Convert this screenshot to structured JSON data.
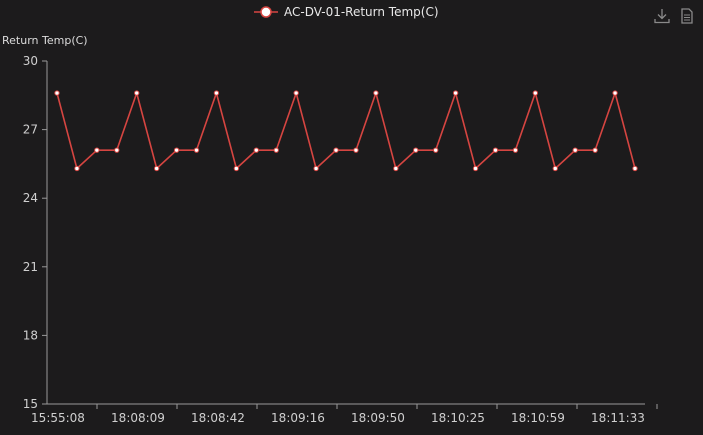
{
  "toolbox": {
    "download_icon": "download-icon",
    "data_view_icon": "data-view-icon"
  },
  "colors": {
    "background": "#1c1b1c",
    "series": "#d64541",
    "axis": "#9a9a9a",
    "text": "#dcdcdc"
  },
  "chart_data": {
    "type": "line",
    "legend_position": "top-center",
    "ylabel": "Return Temp(C)",
    "xlabel": "",
    "ylim": [
      15,
      30
    ],
    "yticks": [
      15,
      18,
      21,
      24,
      27,
      30
    ],
    "grid": false,
    "x_tick_labels": [
      "15:55:08",
      "18:08:09",
      "18:08:42",
      "18:09:16",
      "18:09:50",
      "18:10:25",
      "18:10:59",
      "18:11:33"
    ],
    "series": [
      {
        "name": "AC-DV-01-Return Temp(C)",
        "color": "#d64541",
        "values": [
          28.6,
          25.3,
          26.1,
          26.1,
          28.6,
          25.3,
          26.1,
          26.1,
          28.6,
          25.3,
          26.1,
          26.1,
          28.6,
          25.3,
          26.1,
          26.1,
          28.6,
          25.3,
          26.1,
          26.1,
          28.6,
          25.3,
          26.1,
          26.1,
          28.6,
          25.3,
          26.1,
          26.1,
          28.6,
          25.3
        ]
      }
    ]
  }
}
